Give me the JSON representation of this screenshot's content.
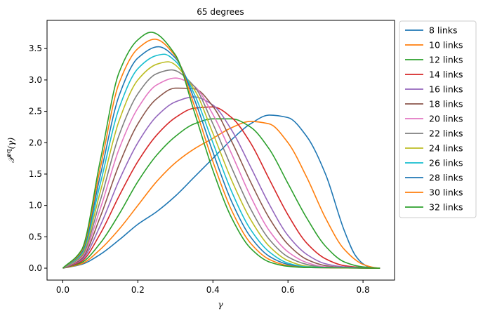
{
  "chart_data": {
    "type": "line",
    "title": "65 degrees",
    "xlabel": "γ",
    "ylabel": "𝒫eq(γ)",
    "ylabel_main": "𝒫",
    "ylabel_sup": "eq",
    "ylabel_arg": "(γ)",
    "xlim": [
      -0.042,
      0.884
    ],
    "ylim": [
      -0.19,
      3.95
    ],
    "xticks": [
      0.0,
      0.2,
      0.4,
      0.6,
      0.8
    ],
    "xtick_labels": [
      "0.0",
      "0.2",
      "0.4",
      "0.6",
      "0.8"
    ],
    "yticks": [
      0.0,
      0.5,
      1.0,
      1.5,
      2.0,
      2.5,
      3.0,
      3.5
    ],
    "ytick_labels": [
      "0.0",
      "0.5",
      "1.0",
      "1.5",
      "2.0",
      "2.5",
      "3.0",
      "3.5"
    ],
    "grid": false,
    "legend": "outside-right",
    "x_max": 0.845,
    "series": [
      {
        "name": "8 links",
        "color": "#1f77b4",
        "peak_x": 0.57,
        "peak_y": 2.45,
        "points": [
          [
            0.0,
            0.0
          ],
          [
            0.05,
            0.06
          ],
          [
            0.1,
            0.22
          ],
          [
            0.15,
            0.45
          ],
          [
            0.2,
            0.7
          ],
          [
            0.25,
            0.9
          ],
          [
            0.3,
            1.15
          ],
          [
            0.35,
            1.45
          ],
          [
            0.4,
            1.75
          ],
          [
            0.45,
            2.05
          ],
          [
            0.5,
            2.3
          ],
          [
            0.55,
            2.44
          ],
          [
            0.6,
            2.4
          ],
          [
            0.65,
            2.1
          ],
          [
            0.7,
            1.5
          ],
          [
            0.75,
            0.6
          ],
          [
            0.78,
            0.2
          ],
          [
            0.8,
            0.07
          ],
          [
            0.82,
            0.01
          ],
          [
            0.845,
            0.0
          ]
        ]
      },
      {
        "name": "10 links",
        "color": "#ff7f0e",
        "peak_x": 0.5,
        "peak_y": 2.34,
        "points": [
          [
            0.0,
            0.0
          ],
          [
            0.05,
            0.07
          ],
          [
            0.1,
            0.3
          ],
          [
            0.15,
            0.62
          ],
          [
            0.2,
            1.0
          ],
          [
            0.25,
            1.38
          ],
          [
            0.3,
            1.68
          ],
          [
            0.35,
            1.9
          ],
          [
            0.4,
            2.07
          ],
          [
            0.45,
            2.24
          ],
          [
            0.5,
            2.34
          ],
          [
            0.55,
            2.3
          ],
          [
            0.6,
            2.0
          ],
          [
            0.65,
            1.45
          ],
          [
            0.7,
            0.8
          ],
          [
            0.75,
            0.3
          ],
          [
            0.8,
            0.06
          ],
          [
            0.83,
            0.01
          ],
          [
            0.845,
            0.0
          ]
        ]
      },
      {
        "name": "12 links",
        "color": "#2ca02c",
        "peak_x": 0.44,
        "peak_y": 2.4,
        "points": [
          [
            0.0,
            0.0
          ],
          [
            0.05,
            0.09
          ],
          [
            0.1,
            0.4
          ],
          [
            0.15,
            0.86
          ],
          [
            0.2,
            1.38
          ],
          [
            0.25,
            1.8
          ],
          [
            0.3,
            2.1
          ],
          [
            0.35,
            2.3
          ],
          [
            0.4,
            2.38
          ],
          [
            0.45,
            2.38
          ],
          [
            0.5,
            2.25
          ],
          [
            0.55,
            1.9
          ],
          [
            0.6,
            1.35
          ],
          [
            0.65,
            0.8
          ],
          [
            0.7,
            0.35
          ],
          [
            0.75,
            0.1
          ],
          [
            0.8,
            0.02
          ],
          [
            0.845,
            0.0
          ]
        ]
      },
      {
        "name": "14 links",
        "color": "#d62728",
        "peak_x": 0.39,
        "peak_y": 2.58,
        "points": [
          [
            0.0,
            0.0
          ],
          [
            0.05,
            0.11
          ],
          [
            0.1,
            0.55
          ],
          [
            0.15,
            1.15
          ],
          [
            0.2,
            1.7
          ],
          [
            0.25,
            2.12
          ],
          [
            0.3,
            2.4
          ],
          [
            0.35,
            2.55
          ],
          [
            0.4,
            2.57
          ],
          [
            0.45,
            2.4
          ],
          [
            0.5,
            2.0
          ],
          [
            0.55,
            1.42
          ],
          [
            0.6,
            0.85
          ],
          [
            0.65,
            0.4
          ],
          [
            0.7,
            0.15
          ],
          [
            0.75,
            0.04
          ],
          [
            0.8,
            0.01
          ],
          [
            0.845,
            0.0
          ]
        ]
      },
      {
        "name": "16 links",
        "color": "#9467bd",
        "peak_x": 0.36,
        "peak_y": 2.73,
        "points": [
          [
            0.0,
            0.0
          ],
          [
            0.05,
            0.13
          ],
          [
            0.1,
            0.68
          ],
          [
            0.15,
            1.4
          ],
          [
            0.2,
            2.0
          ],
          [
            0.25,
            2.42
          ],
          [
            0.3,
            2.65
          ],
          [
            0.35,
            2.73
          ],
          [
            0.4,
            2.6
          ],
          [
            0.45,
            2.2
          ],
          [
            0.5,
            1.62
          ],
          [
            0.55,
            1.02
          ],
          [
            0.6,
            0.52
          ],
          [
            0.65,
            0.22
          ],
          [
            0.7,
            0.07
          ],
          [
            0.75,
            0.02
          ],
          [
            0.845,
            0.0
          ]
        ]
      },
      {
        "name": "18 links",
        "color": "#8c564b",
        "peak_x": 0.335,
        "peak_y": 2.89,
        "points": [
          [
            0.0,
            0.0
          ],
          [
            0.05,
            0.15
          ],
          [
            0.1,
            0.82
          ],
          [
            0.15,
            1.65
          ],
          [
            0.2,
            2.3
          ],
          [
            0.25,
            2.7
          ],
          [
            0.3,
            2.87
          ],
          [
            0.35,
            2.86
          ],
          [
            0.4,
            2.58
          ],
          [
            0.45,
            2.02
          ],
          [
            0.5,
            1.38
          ],
          [
            0.55,
            0.8
          ],
          [
            0.6,
            0.38
          ],
          [
            0.65,
            0.14
          ],
          [
            0.7,
            0.04
          ],
          [
            0.75,
            0.01
          ],
          [
            0.845,
            0.0
          ]
        ]
      },
      {
        "name": "20 links",
        "color": "#e377c2",
        "peak_x": 0.31,
        "peak_y": 3.03,
        "points": [
          [
            0.0,
            0.0
          ],
          [
            0.05,
            0.17
          ],
          [
            0.1,
            0.95
          ],
          [
            0.15,
            1.9
          ],
          [
            0.2,
            2.55
          ],
          [
            0.25,
            2.92
          ],
          [
            0.3,
            3.03
          ],
          [
            0.35,
            2.9
          ],
          [
            0.4,
            2.45
          ],
          [
            0.45,
            1.82
          ],
          [
            0.5,
            1.15
          ],
          [
            0.55,
            0.6
          ],
          [
            0.6,
            0.26
          ],
          [
            0.65,
            0.09
          ],
          [
            0.7,
            0.02
          ],
          [
            0.845,
            0.0
          ]
        ]
      },
      {
        "name": "22 links",
        "color": "#7f7f7f",
        "peak_x": 0.29,
        "peak_y": 3.16,
        "points": [
          [
            0.0,
            0.0
          ],
          [
            0.05,
            0.19
          ],
          [
            0.1,
            1.08
          ],
          [
            0.15,
            2.12
          ],
          [
            0.2,
            2.78
          ],
          [
            0.25,
            3.1
          ],
          [
            0.29,
            3.16
          ],
          [
            0.35,
            2.9
          ],
          [
            0.4,
            2.3
          ],
          [
            0.45,
            1.6
          ],
          [
            0.5,
            0.95
          ],
          [
            0.55,
            0.46
          ],
          [
            0.6,
            0.18
          ],
          [
            0.65,
            0.06
          ],
          [
            0.7,
            0.01
          ],
          [
            0.845,
            0.0
          ]
        ]
      },
      {
        "name": "24 links",
        "color": "#bcbd22",
        "peak_x": 0.275,
        "peak_y": 3.29,
        "points": [
          [
            0.0,
            0.0
          ],
          [
            0.05,
            0.21
          ],
          [
            0.1,
            1.22
          ],
          [
            0.15,
            2.35
          ],
          [
            0.2,
            3.0
          ],
          [
            0.25,
            3.25
          ],
          [
            0.28,
            3.29
          ],
          [
            0.35,
            2.85
          ],
          [
            0.4,
            2.15
          ],
          [
            0.45,
            1.4
          ],
          [
            0.5,
            0.78
          ],
          [
            0.55,
            0.35
          ],
          [
            0.6,
            0.12
          ],
          [
            0.65,
            0.03
          ],
          [
            0.7,
            0.01
          ],
          [
            0.845,
            0.0
          ]
        ]
      },
      {
        "name": "26 links",
        "color": "#17becf",
        "peak_x": 0.265,
        "peak_y": 3.41,
        "points": [
          [
            0.0,
            0.0
          ],
          [
            0.05,
            0.23
          ],
          [
            0.1,
            1.35
          ],
          [
            0.15,
            2.55
          ],
          [
            0.2,
            3.18
          ],
          [
            0.25,
            3.39
          ],
          [
            0.27,
            3.41
          ],
          [
            0.3,
            3.3
          ],
          [
            0.35,
            2.78
          ],
          [
            0.4,
            2.0
          ],
          [
            0.45,
            1.22
          ],
          [
            0.5,
            0.62
          ],
          [
            0.55,
            0.26
          ],
          [
            0.6,
            0.08
          ],
          [
            0.65,
            0.02
          ],
          [
            0.845,
            0.0
          ]
        ]
      },
      {
        "name": "28 links",
        "color": "#1f77b4",
        "peak_x": 0.255,
        "peak_y": 3.53,
        "points": [
          [
            0.0,
            0.0
          ],
          [
            0.05,
            0.25
          ],
          [
            0.1,
            1.48
          ],
          [
            0.15,
            2.75
          ],
          [
            0.2,
            3.35
          ],
          [
            0.255,
            3.53
          ],
          [
            0.3,
            3.35
          ],
          [
            0.35,
            2.7
          ],
          [
            0.4,
            1.85
          ],
          [
            0.45,
            1.06
          ],
          [
            0.5,
            0.5
          ],
          [
            0.55,
            0.19
          ],
          [
            0.6,
            0.06
          ],
          [
            0.65,
            0.01
          ],
          [
            0.845,
            0.0
          ]
        ]
      },
      {
        "name": "30 links",
        "color": "#ff7f0e",
        "peak_x": 0.245,
        "peak_y": 3.65,
        "points": [
          [
            0.0,
            0.0
          ],
          [
            0.05,
            0.27
          ],
          [
            0.1,
            1.6
          ],
          [
            0.15,
            2.95
          ],
          [
            0.2,
            3.5
          ],
          [
            0.245,
            3.65
          ],
          [
            0.3,
            3.38
          ],
          [
            0.35,
            2.6
          ],
          [
            0.4,
            1.7
          ],
          [
            0.45,
            0.92
          ],
          [
            0.5,
            0.4
          ],
          [
            0.55,
            0.14
          ],
          [
            0.6,
            0.04
          ],
          [
            0.65,
            0.01
          ],
          [
            0.845,
            0.0
          ]
        ]
      },
      {
        "name": "32 links",
        "color": "#2ca02c",
        "peak_x": 0.235,
        "peak_y": 3.76,
        "points": [
          [
            0.0,
            0.0
          ],
          [
            0.05,
            0.29
          ],
          [
            0.1,
            1.72
          ],
          [
            0.15,
            3.12
          ],
          [
            0.2,
            3.64
          ],
          [
            0.235,
            3.76
          ],
          [
            0.3,
            3.4
          ],
          [
            0.35,
            2.5
          ],
          [
            0.4,
            1.56
          ],
          [
            0.45,
            0.8
          ],
          [
            0.5,
            0.32
          ],
          [
            0.55,
            0.1
          ],
          [
            0.6,
            0.03
          ],
          [
            0.65,
            0.01
          ],
          [
            0.845,
            0.0
          ]
        ]
      }
    ]
  }
}
